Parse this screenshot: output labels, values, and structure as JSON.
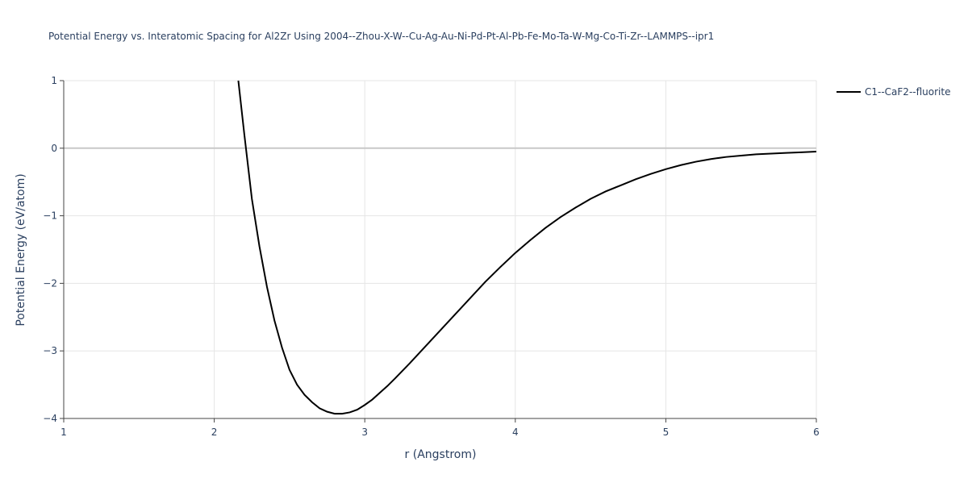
{
  "chart_data": {
    "type": "line",
    "title": "Potential Energy vs. Interatomic Spacing for Al2Zr Using 2004--Zhou-X-W--Cu-Ag-Au-Ni-Pd-Pt-Al-Pb-Fe-Mo-Ta-W-Mg-Co-Ti-Zr--LAMMPS--ipr1",
    "x_label": "r (Angstrom)",
    "y_label": "Potential Energy (eV/atom)",
    "x": [
      2.16,
      2.2,
      2.25,
      2.3,
      2.35,
      2.4,
      2.45,
      2.5,
      2.55,
      2.6,
      2.65,
      2.7,
      2.75,
      2.8,
      2.85,
      2.9,
      2.95,
      3.0,
      3.05,
      3.1,
      3.15,
      3.2,
      3.3,
      3.4,
      3.5,
      3.6,
      3.7,
      3.8,
      3.9,
      4.0,
      4.1,
      4.2,
      4.3,
      4.4,
      4.5,
      4.6,
      4.7,
      4.8,
      4.9,
      5.0,
      5.1,
      5.2,
      5.3,
      5.4,
      5.5,
      5.6,
      5.7,
      5.8,
      5.9,
      6.0
    ],
    "series": [
      {
        "name": "C1--CaF2--fluorite",
        "color": "#000000",
        "values": [
          1.0,
          0.2,
          -0.75,
          -1.45,
          -2.05,
          -2.55,
          -2.95,
          -3.28,
          -3.5,
          -3.65,
          -3.76,
          -3.85,
          -3.9,
          -3.93,
          -3.93,
          -3.91,
          -3.87,
          -3.8,
          -3.72,
          -3.62,
          -3.52,
          -3.41,
          -3.18,
          -2.94,
          -2.7,
          -2.46,
          -2.22,
          -1.98,
          -1.76,
          -1.55,
          -1.36,
          -1.18,
          -1.02,
          -0.88,
          -0.75,
          -0.64,
          -0.55,
          -0.46,
          -0.38,
          -0.31,
          -0.25,
          -0.2,
          -0.16,
          -0.13,
          -0.11,
          -0.09,
          -0.08,
          -0.07,
          -0.06,
          -0.05
        ]
      }
    ],
    "xlim": [
      1,
      6
    ],
    "xticks": [
      1,
      2,
      3,
      4,
      5,
      6
    ],
    "ylim": [
      -4,
      1
    ],
    "yticks": [
      {
        "value": -4,
        "label": "−4"
      },
      {
        "value": -3,
        "label": "−3"
      },
      {
        "value": -2,
        "label": "−2"
      },
      {
        "value": -1,
        "label": "−1"
      },
      0,
      1
    ],
    "grid": true,
    "legend": "top-right"
  }
}
